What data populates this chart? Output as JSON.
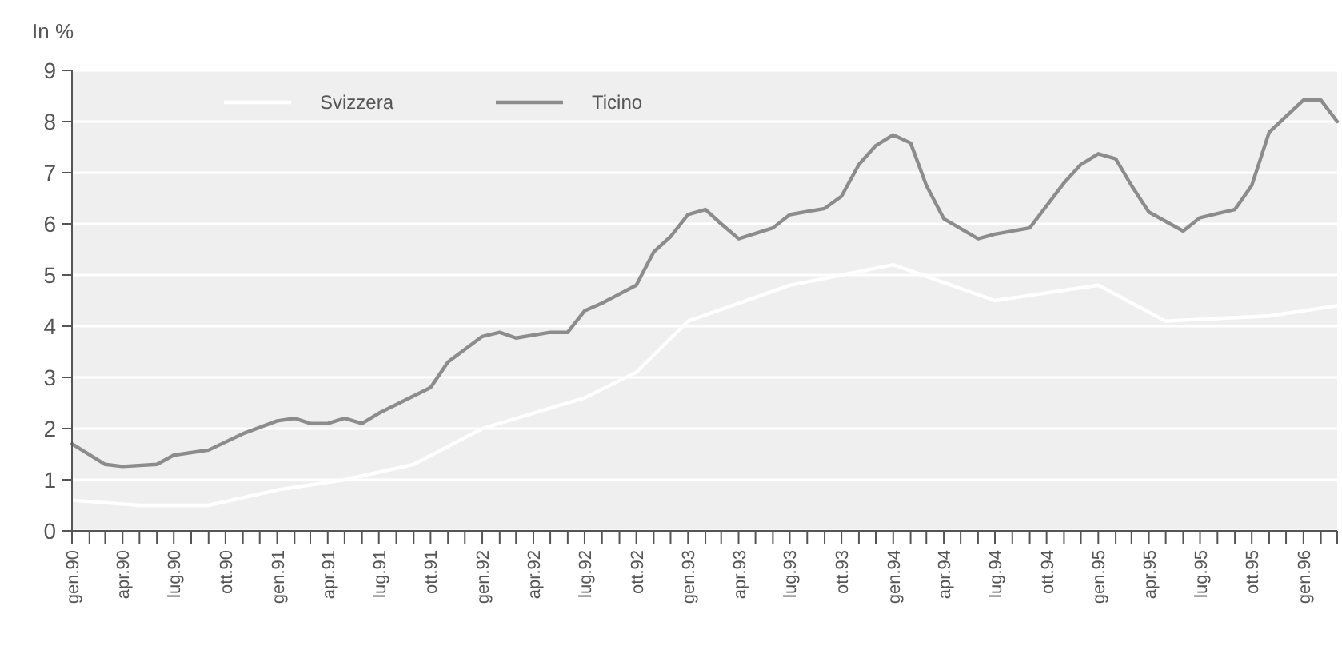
{
  "chart_data": {
    "type": "line",
    "ylabel": "In %",
    "xlim": [
      "1990-01",
      "1996-03"
    ],
    "ylim": [
      0,
      9
    ],
    "yticks": [
      0,
      1,
      2,
      3,
      4,
      5,
      6,
      7,
      8,
      9
    ],
    "xticks": [
      {
        "value": "1990-01",
        "label": "gen.90"
      },
      {
        "value": "1990-02",
        "label": null
      },
      {
        "value": "1990-03",
        "label": null
      },
      {
        "value": "1990-04",
        "label": "apr.90"
      },
      {
        "value": "1990-05",
        "label": null
      },
      {
        "value": "1990-06",
        "label": null
      },
      {
        "value": "1990-07",
        "label": "lug.90"
      },
      {
        "value": "1990-08",
        "label": null
      },
      {
        "value": "1990-09",
        "label": null
      },
      {
        "value": "1990-10",
        "label": "ott.90"
      },
      {
        "value": "1990-11",
        "label": null
      },
      {
        "value": "1990-12",
        "label": null
      },
      {
        "value": "1991-01",
        "label": "gen.91"
      },
      {
        "value": "1991-02",
        "label": null
      },
      {
        "value": "1991-03",
        "label": null
      },
      {
        "value": "1991-04",
        "label": "apr.91"
      },
      {
        "value": "1991-05",
        "label": null
      },
      {
        "value": "1991-06",
        "label": null
      },
      {
        "value": "1991-07",
        "label": "lug.91"
      },
      {
        "value": "1991-08",
        "label": null
      },
      {
        "value": "1991-09",
        "label": null
      },
      {
        "value": "1991-10",
        "label": "ott.91"
      },
      {
        "value": "1991-11",
        "label": null
      },
      {
        "value": "1991-12",
        "label": null
      },
      {
        "value": "1992-01",
        "label": "gen.92"
      },
      {
        "value": "1992-02",
        "label": null
      },
      {
        "value": "1992-03",
        "label": null
      },
      {
        "value": "1992-04",
        "label": "apr.92"
      },
      {
        "value": "1992-05",
        "label": null
      },
      {
        "value": "1992-06",
        "label": null
      },
      {
        "value": "1992-07",
        "label": "lug.92"
      },
      {
        "value": "1992-08",
        "label": null
      },
      {
        "value": "1992-09",
        "label": null
      },
      {
        "value": "1992-10",
        "label": "ott.92"
      },
      {
        "value": "1992-11",
        "label": null
      },
      {
        "value": "1992-12",
        "label": null
      },
      {
        "value": "1993-01",
        "label": "gen.93"
      },
      {
        "value": "1993-02",
        "label": null
      },
      {
        "value": "1993-03",
        "label": null
      },
      {
        "value": "1993-04",
        "label": "apr.93"
      },
      {
        "value": "1993-05",
        "label": null
      },
      {
        "value": "1993-06",
        "label": null
      },
      {
        "value": "1993-07",
        "label": "lug.93"
      },
      {
        "value": "1993-08",
        "label": null
      },
      {
        "value": "1993-09",
        "label": null
      },
      {
        "value": "1993-10",
        "label": "ott.93"
      },
      {
        "value": "1993-11",
        "label": null
      },
      {
        "value": "1993-12",
        "label": null
      },
      {
        "value": "1994-01",
        "label": "gen.94"
      },
      {
        "value": "1994-02",
        "label": null
      },
      {
        "value": "1994-03",
        "label": null
      },
      {
        "value": "1994-04",
        "label": "apr.94"
      },
      {
        "value": "1994-05",
        "label": null
      },
      {
        "value": "1994-06",
        "label": null
      },
      {
        "value": "1994-07",
        "label": "lug.94"
      },
      {
        "value": "1994-08",
        "label": null
      },
      {
        "value": "1994-09",
        "label": null
      },
      {
        "value": "1994-10",
        "label": "ott.94"
      },
      {
        "value": "1994-11",
        "label": null
      },
      {
        "value": "1994-12",
        "label": null
      },
      {
        "value": "1995-01",
        "label": "gen.95"
      },
      {
        "value": "1995-02",
        "label": null
      },
      {
        "value": "1995-03",
        "label": null
      },
      {
        "value": "1995-04",
        "label": "apr.95"
      },
      {
        "value": "1995-05",
        "label": null
      },
      {
        "value": "1995-06",
        "label": null
      },
      {
        "value": "1995-07",
        "label": "lug.95"
      },
      {
        "value": "1995-08",
        "label": null
      },
      {
        "value": "1995-09",
        "label": null
      },
      {
        "value": "1995-10",
        "label": "ott.95"
      },
      {
        "value": "1995-11",
        "label": null
      },
      {
        "value": "1995-12",
        "label": null
      },
      {
        "value": "1996-01",
        "label": "gen.96"
      },
      {
        "value": "1996-02",
        "label": null
      },
      {
        "value": "1996-03",
        "label": null
      }
    ],
    "grid": "y",
    "legend": "top",
    "line_style": "solid",
    "marker": "none",
    "series": [
      {
        "name": "Svizzera",
        "color": "#ffffff",
        "x": [
          "1990-01",
          "1990-05",
          "1990-09",
          "1991-01",
          "1991-05",
          "1991-09",
          "1992-01",
          "1992-05",
          "1992-07",
          "1992-10",
          "1993-01",
          "1993-07",
          "1994-01",
          "1994-07",
          "1995-01",
          "1995-05",
          "1995-11",
          "1996-03"
        ],
        "values": [
          0.6,
          0.5,
          0.5,
          0.8,
          1.0,
          1.3,
          2.0,
          2.4,
          2.6,
          3.1,
          4.1,
          4.8,
          5.2,
          4.5,
          4.8,
          4.1,
          4.2,
          4.4
        ]
      },
      {
        "name": "Ticino",
        "color": "#8c8c8c",
        "x": [
          "1990-01",
          "1990-03",
          "1990-04",
          "1990-06",
          "1990-07",
          "1990-09",
          "1990-11",
          "1991-01",
          "1991-02",
          "1991-03",
          "1991-04",
          "1991-05",
          "1991-06",
          "1991-07",
          "1991-08",
          "1991-10",
          "1991-11",
          "1992-01",
          "1992-02",
          "1992-03",
          "1992-05",
          "1992-06",
          "1992-07",
          "1992-08",
          "1992-10",
          "1992-11",
          "1992-12",
          "1993-01",
          "1993-02",
          "1993-03",
          "1993-04",
          "1993-06",
          "1993-07",
          "1993-09",
          "1993-10",
          "1993-11",
          "1993-12",
          "1994-01",
          "1994-02",
          "1994-03",
          "1994-04",
          "1994-06",
          "1994-07",
          "1994-09",
          "1994-11",
          "1994-12",
          "1995-01",
          "1995-02",
          "1995-03",
          "1995-04",
          "1995-06",
          "1995-07",
          "1995-09",
          "1995-10",
          "1995-11",
          "1996-01",
          "1996-02",
          "1996-03"
        ],
        "values": [
          1.7,
          1.3,
          1.26,
          1.3,
          1.48,
          1.58,
          1.9,
          2.15,
          2.2,
          2.1,
          2.1,
          2.2,
          2.1,
          2.3,
          2.47,
          2.8,
          3.3,
          3.8,
          3.88,
          3.77,
          3.88,
          3.88,
          4.3,
          4.45,
          4.8,
          5.45,
          5.75,
          6.18,
          6.28,
          6.0,
          5.71,
          5.92,
          6.18,
          6.3,
          6.54,
          7.16,
          7.53,
          7.74,
          7.58,
          6.75,
          6.1,
          5.71,
          5.8,
          5.92,
          6.8,
          7.16,
          7.37,
          7.27,
          6.75,
          6.23,
          5.86,
          6.12,
          6.28,
          6.75,
          7.79,
          8.42,
          8.42,
          8.0
        ]
      }
    ]
  }
}
